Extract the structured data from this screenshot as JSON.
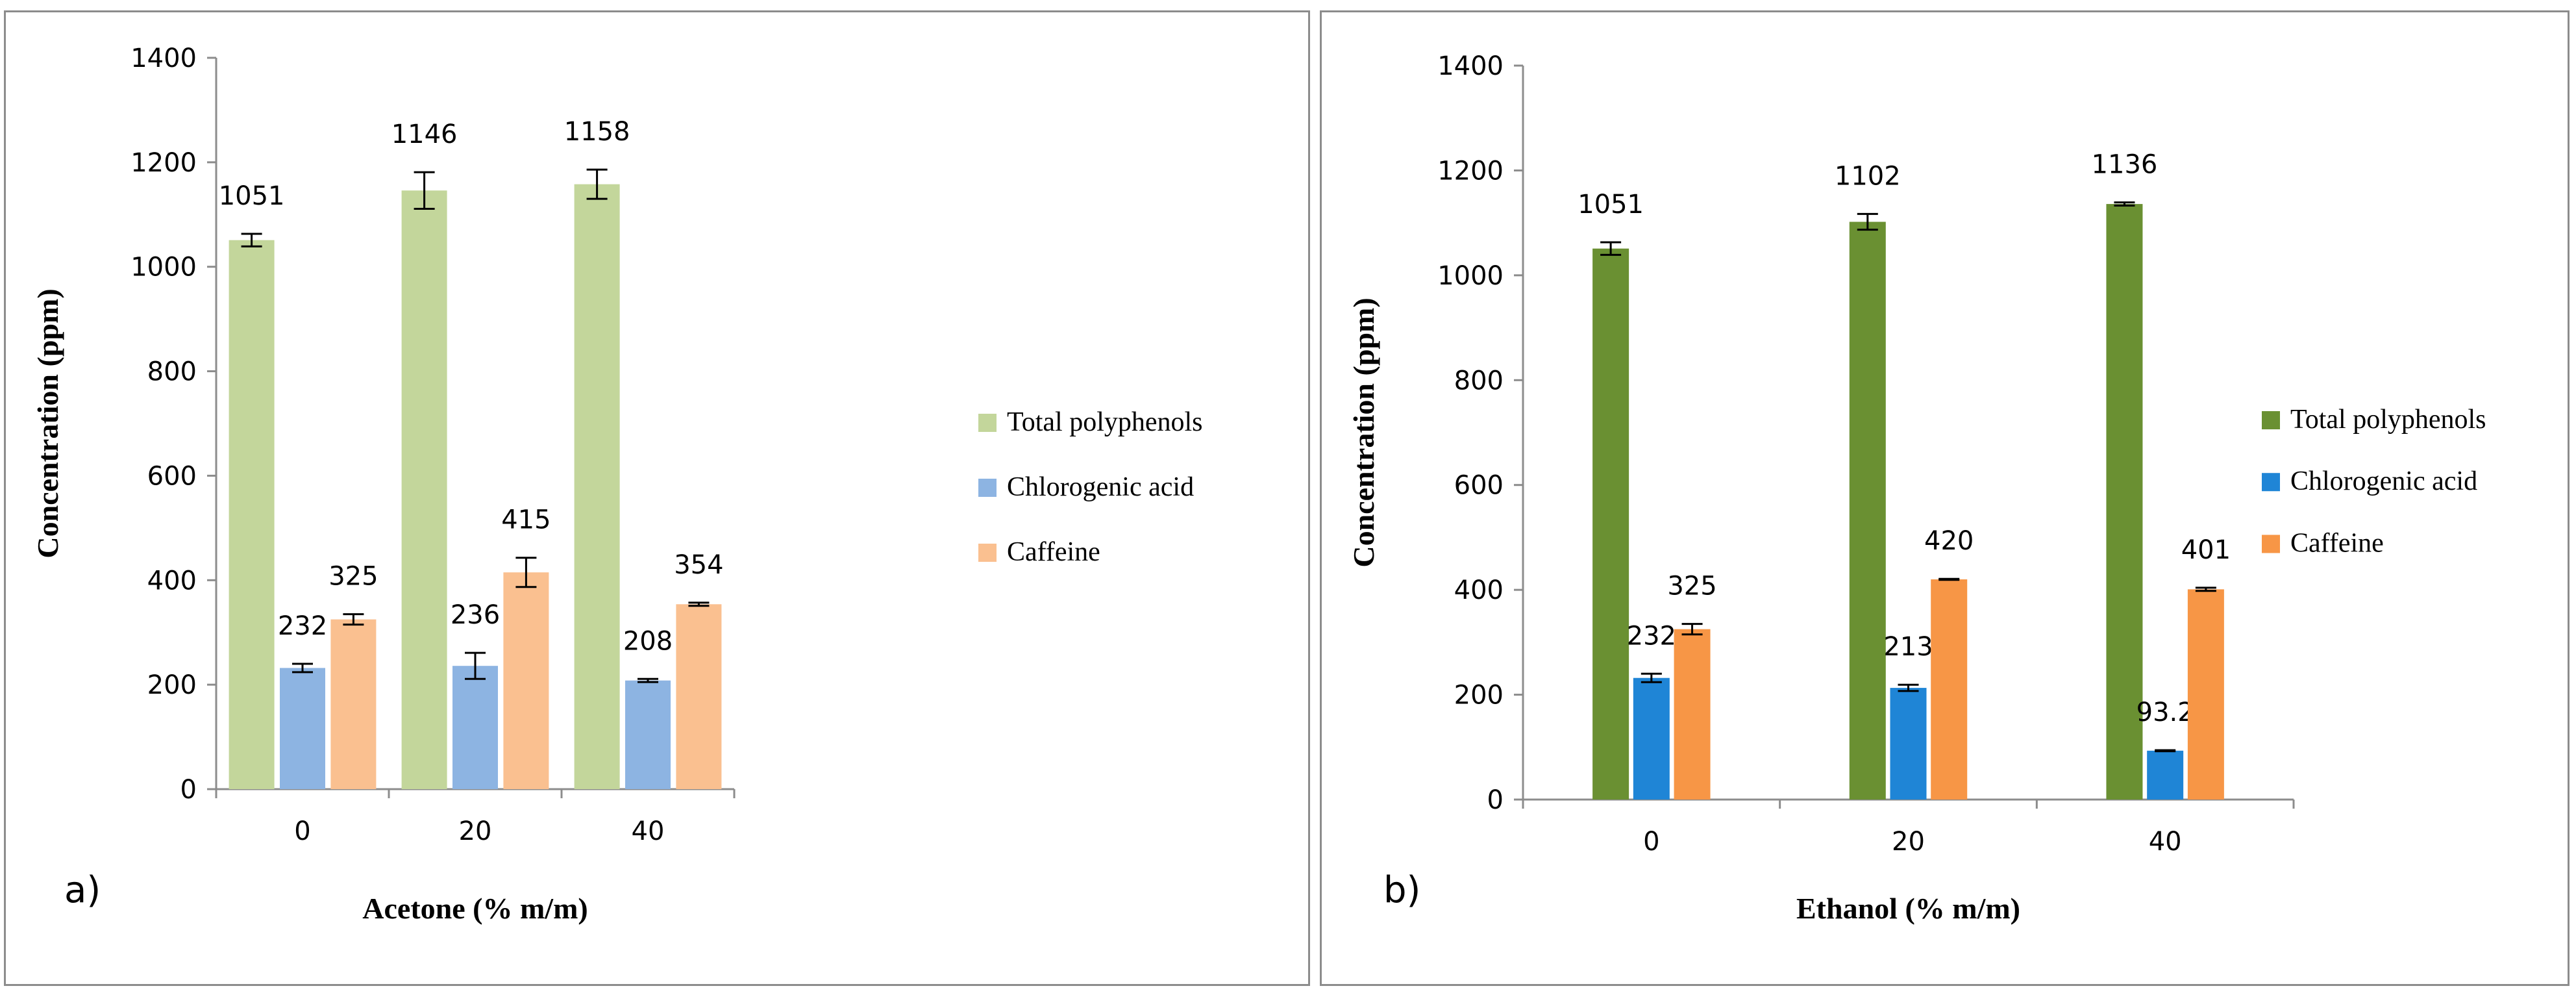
{
  "chart_data": [
    {
      "type": "bar",
      "panel_label": "a)",
      "xlabel": "Acetone (% m/m)",
      "ylabel": "Concentration (ppm)",
      "ylim": [
        0,
        1400
      ],
      "yticks": [
        "0",
        "200",
        "400",
        "600",
        "800",
        "1000",
        "1200",
        "1400"
      ],
      "categories": [
        "0",
        "20",
        "40"
      ],
      "legend_position": "right",
      "series": [
        {
          "name": "Total polyphenols",
          "color": "#c3d69b",
          "values": [
            1051,
            1146,
            1158
          ],
          "errors": [
            12,
            35,
            28
          ],
          "labels": [
            "1051",
            "1146",
            "1158"
          ]
        },
        {
          "name": "Chlorogenic acid",
          "color": "#8db4e2",
          "values": [
            232,
            236,
            208
          ],
          "errors": [
            8,
            25,
            3
          ],
          "labels": [
            "232",
            "236",
            "208"
          ]
        },
        {
          "name": "Caffeine",
          "color": "#fac090",
          "values": [
            325,
            415,
            354
          ],
          "errors": [
            10,
            28,
            3
          ],
          "labels": [
            "325",
            "415",
            "354"
          ]
        }
      ]
    },
    {
      "type": "bar",
      "panel_label": "b)",
      "xlabel": "Ethanol (% m/m)",
      "ylabel": "Concentration (ppm)",
      "ylim": [
        0,
        1400
      ],
      "yticks": [
        "0",
        "200",
        "400",
        "600",
        "800",
        "1000",
        "1200",
        "1400"
      ],
      "categories": [
        "0",
        "20",
        "40"
      ],
      "legend_position": "right",
      "series": [
        {
          "name": "Total polyphenols",
          "color": "#6a9032",
          "values": [
            1051,
            1102,
            1136
          ],
          "errors": [
            12,
            15,
            3
          ],
          "labels": [
            "1051",
            "1102",
            "1136"
          ]
        },
        {
          "name": "Chlorogenic acid",
          "color": "#1f85d6",
          "values": [
            232,
            213,
            93.2
          ],
          "errors": [
            8,
            6,
            1
          ],
          "labels": [
            "232",
            "213",
            "93.2"
          ]
        },
        {
          "name": "Caffeine",
          "color": "#f79646",
          "values": [
            325,
            420,
            401
          ],
          "errors": [
            10,
            1,
            3
          ],
          "labels": [
            "325",
            "420",
            "401"
          ]
        }
      ]
    }
  ]
}
